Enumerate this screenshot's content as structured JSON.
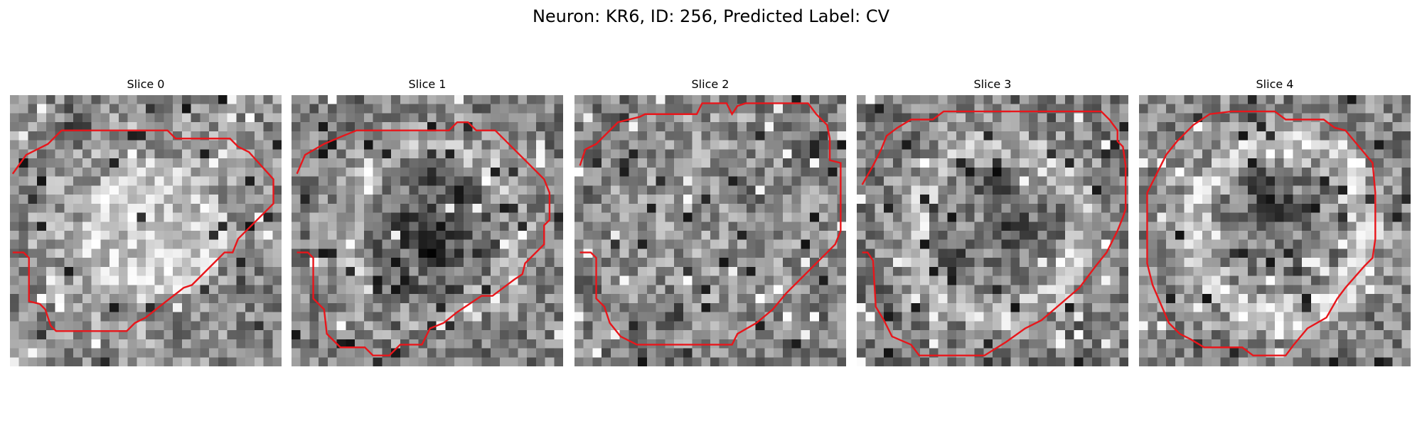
{
  "figure": {
    "title": "Neuron: KR6, ID: 256, Predicted Label: CV"
  },
  "colors": {
    "contour": "#e8161b",
    "background": "#ffffff"
  },
  "slices": [
    {
      "label": "Slice 0",
      "contour": [
        [
          0.01,
          0.29
        ],
        [
          0.06,
          0.22
        ],
        [
          0.14,
          0.18
        ],
        [
          0.19,
          0.13
        ],
        [
          0.25,
          0.13
        ],
        [
          0.58,
          0.13
        ],
        [
          0.61,
          0.16
        ],
        [
          0.81,
          0.16
        ],
        [
          0.84,
          0.19
        ],
        [
          0.88,
          0.21
        ],
        [
          0.97,
          0.31
        ],
        [
          0.97,
          0.4
        ],
        [
          0.84,
          0.53
        ],
        [
          0.82,
          0.58
        ],
        [
          0.79,
          0.58
        ],
        [
          0.73,
          0.64
        ],
        [
          0.67,
          0.7
        ],
        [
          0.64,
          0.71
        ],
        [
          0.55,
          0.78
        ],
        [
          0.5,
          0.82
        ],
        [
          0.46,
          0.84
        ],
        [
          0.43,
          0.87
        ],
        [
          0.41,
          0.87
        ],
        [
          0.17,
          0.87
        ],
        [
          0.15,
          0.85
        ],
        [
          0.13,
          0.79
        ],
        [
          0.11,
          0.77
        ],
        [
          0.07,
          0.76
        ],
        [
          0.07,
          0.6
        ],
        [
          0.05,
          0.58
        ],
        [
          0.01,
          0.58
        ]
      ]
    },
    {
      "label": "Slice 1",
      "contour": [
        [
          0.02,
          0.29
        ],
        [
          0.05,
          0.22
        ],
        [
          0.12,
          0.18
        ],
        [
          0.19,
          0.15
        ],
        [
          0.24,
          0.13
        ],
        [
          0.58,
          0.13
        ],
        [
          0.61,
          0.1
        ],
        [
          0.65,
          0.1
        ],
        [
          0.68,
          0.13
        ],
        [
          0.75,
          0.13
        ],
        [
          0.88,
          0.26
        ],
        [
          0.93,
          0.31
        ],
        [
          0.95,
          0.36
        ],
        [
          0.95,
          0.46
        ],
        [
          0.93,
          0.48
        ],
        [
          0.93,
          0.55
        ],
        [
          0.86,
          0.62
        ],
        [
          0.85,
          0.66
        ],
        [
          0.82,
          0.68
        ],
        [
          0.74,
          0.74
        ],
        [
          0.7,
          0.74
        ],
        [
          0.61,
          0.8
        ],
        [
          0.56,
          0.84
        ],
        [
          0.51,
          0.86
        ],
        [
          0.48,
          0.92
        ],
        [
          0.46,
          0.92
        ],
        [
          0.4,
          0.92
        ],
        [
          0.36,
          0.96
        ],
        [
          0.3,
          0.96
        ],
        [
          0.27,
          0.93
        ],
        [
          0.18,
          0.93
        ],
        [
          0.13,
          0.88
        ],
        [
          0.12,
          0.79
        ],
        [
          0.08,
          0.75
        ],
        [
          0.08,
          0.6
        ],
        [
          0.06,
          0.58
        ],
        [
          0.02,
          0.58
        ]
      ]
    },
    {
      "label": "Slice 2",
      "contour": [
        [
          0.02,
          0.26
        ],
        [
          0.04,
          0.2
        ],
        [
          0.08,
          0.18
        ],
        [
          0.14,
          0.12
        ],
        [
          0.16,
          0.1
        ],
        [
          0.24,
          0.08
        ],
        [
          0.26,
          0.07
        ],
        [
          0.45,
          0.07
        ],
        [
          0.47,
          0.03
        ],
        [
          0.56,
          0.03
        ],
        [
          0.58,
          0.07
        ],
        [
          0.6,
          0.04
        ],
        [
          0.63,
          0.03
        ],
        [
          0.86,
          0.03
        ],
        [
          0.89,
          0.07
        ],
        [
          0.93,
          0.11
        ],
        [
          0.94,
          0.16
        ],
        [
          0.94,
          0.24
        ],
        [
          0.98,
          0.25
        ],
        [
          0.98,
          0.5
        ],
        [
          0.96,
          0.55
        ],
        [
          0.91,
          0.6
        ],
        [
          0.85,
          0.66
        ],
        [
          0.78,
          0.73
        ],
        [
          0.73,
          0.79
        ],
        [
          0.67,
          0.84
        ],
        [
          0.6,
          0.88
        ],
        [
          0.58,
          0.92
        ],
        [
          0.51,
          0.92
        ],
        [
          0.23,
          0.92
        ],
        [
          0.17,
          0.89
        ],
        [
          0.13,
          0.84
        ],
        [
          0.11,
          0.78
        ],
        [
          0.08,
          0.75
        ],
        [
          0.08,
          0.6
        ],
        [
          0.06,
          0.58
        ],
        [
          0.02,
          0.58
        ]
      ]
    },
    {
      "label": "Slice 3",
      "contour": [
        [
          0.02,
          0.33
        ],
        [
          0.06,
          0.26
        ],
        [
          0.09,
          0.2
        ],
        [
          0.11,
          0.15
        ],
        [
          0.15,
          0.12
        ],
        [
          0.2,
          0.09
        ],
        [
          0.28,
          0.09
        ],
        [
          0.32,
          0.06
        ],
        [
          0.9,
          0.06
        ],
        [
          0.93,
          0.09
        ],
        [
          0.96,
          0.13
        ],
        [
          0.96,
          0.17
        ],
        [
          0.98,
          0.19
        ],
        [
          0.99,
          0.26
        ],
        [
          0.99,
          0.42
        ],
        [
          0.98,
          0.45
        ],
        [
          0.96,
          0.5
        ],
        [
          0.92,
          0.58
        ],
        [
          0.88,
          0.63
        ],
        [
          0.82,
          0.71
        ],
        [
          0.75,
          0.77
        ],
        [
          0.68,
          0.83
        ],
        [
          0.62,
          0.86
        ],
        [
          0.55,
          0.91
        ],
        [
          0.47,
          0.96
        ],
        [
          0.44,
          0.96
        ],
        [
          0.23,
          0.96
        ],
        [
          0.2,
          0.92
        ],
        [
          0.13,
          0.89
        ],
        [
          0.1,
          0.83
        ],
        [
          0.07,
          0.78
        ],
        [
          0.06,
          0.61
        ],
        [
          0.04,
          0.58
        ],
        [
          0.02,
          0.58
        ]
      ]
    },
    {
      "label": "Slice 4",
      "contour": [
        [
          0.03,
          0.36
        ],
        [
          0.06,
          0.3
        ],
        [
          0.1,
          0.22
        ],
        [
          0.14,
          0.17
        ],
        [
          0.2,
          0.11
        ],
        [
          0.26,
          0.07
        ],
        [
          0.34,
          0.06
        ],
        [
          0.5,
          0.06
        ],
        [
          0.54,
          0.09
        ],
        [
          0.68,
          0.09
        ],
        [
          0.72,
          0.12
        ],
        [
          0.76,
          0.13
        ],
        [
          0.86,
          0.25
        ],
        [
          0.87,
          0.36
        ],
        [
          0.87,
          0.53
        ],
        [
          0.86,
          0.6
        ],
        [
          0.85,
          0.61
        ],
        [
          0.83,
          0.63
        ],
        [
          0.76,
          0.71
        ],
        [
          0.73,
          0.75
        ],
        [
          0.69,
          0.82
        ],
        [
          0.62,
          0.86
        ],
        [
          0.57,
          0.92
        ],
        [
          0.54,
          0.96
        ],
        [
          0.5,
          0.96
        ],
        [
          0.42,
          0.96
        ],
        [
          0.38,
          0.93
        ],
        [
          0.35,
          0.93
        ],
        [
          0.24,
          0.93
        ],
        [
          0.19,
          0.9
        ],
        [
          0.15,
          0.88
        ],
        [
          0.11,
          0.84
        ],
        [
          0.08,
          0.77
        ],
        [
          0.05,
          0.7
        ],
        [
          0.03,
          0.62
        ],
        [
          0.03,
          0.36
        ]
      ]
    }
  ]
}
